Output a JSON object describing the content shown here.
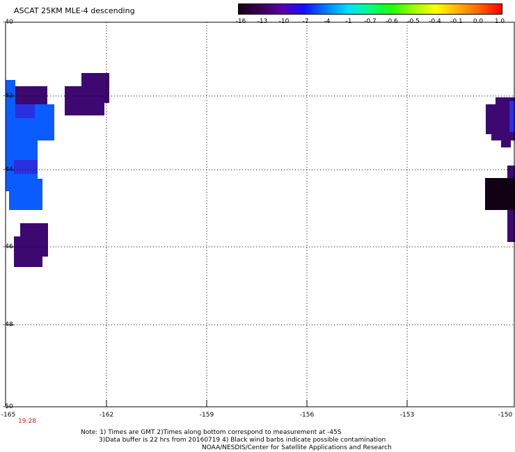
{
  "title": "ASCAT 25KM MLE-4 descending",
  "colorbar": {
    "labels": [
      "-16",
      "-13",
      "-10",
      "-7",
      "-4",
      "-1",
      "-0.7",
      "-0.6",
      "-0.5",
      "-0.4",
      "-0.1",
      "0.0",
      "1.0"
    ],
    "colors": [
      "#1a0018",
      "#3a0058",
      "#5a00b0",
      "#1010ff",
      "#0080ff",
      "#00e0ff",
      "#00ff80",
      "#20ff00",
      "#a0ff00",
      "#ffff00",
      "#ffb000",
      "#ff6000",
      "#ff0000"
    ]
  },
  "map": {
    "lat_labels": [
      "-40",
      "-42",
      "-44",
      "-46",
      "-48",
      "-50"
    ],
    "lon_labels": [
      "-165",
      "-162",
      "-159",
      "-156",
      "-153",
      "-150"
    ],
    "time_label": "19:28",
    "cell_colors": {
      "purple": "#3d0870",
      "blue": "#0a5cff",
      "dark": "#120014",
      "mid": "#2a30e0"
    }
  },
  "notes": {
    "line1": "Note: 1) Times are GMT 2)Times along bottom correspond to measurement at -45S",
    "line2": "3)Data buffer is 22 hrs from 20160719 4) Black wind barbs indicate possible contamination",
    "line3": "NOAA/NESDIS/Center for Satellite Applications and Research"
  }
}
